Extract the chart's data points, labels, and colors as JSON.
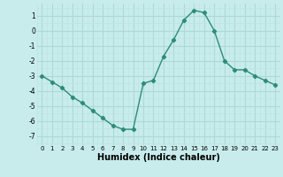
{
  "x": [
    0,
    1,
    2,
    3,
    4,
    5,
    6,
    7,
    8,
    9,
    10,
    11,
    12,
    13,
    14,
    15,
    16,
    17,
    18,
    19,
    20,
    21,
    22,
    23
  ],
  "y": [
    -3.0,
    -3.4,
    -3.8,
    -4.4,
    -4.8,
    -5.3,
    -5.8,
    -6.3,
    -6.55,
    -6.55,
    -3.5,
    -3.3,
    -1.7,
    -0.6,
    0.7,
    1.35,
    1.2,
    0.0,
    -2.0,
    -2.6,
    -2.6,
    -3.0,
    -3.3,
    -3.6
  ],
  "line_color": "#2e8b7a",
  "marker": "D",
  "markersize": 2.2,
  "linewidth": 1.0,
  "bg_color": "#c8ecec",
  "grid_major_color": "#aed8d8",
  "grid_minor_color": "#bce4e4",
  "xlabel": "Humidex (Indice chaleur)",
  "xlabel_fontsize": 7,
  "ytick_labels": [
    "1",
    "0",
    "-1",
    "-2",
    "-3",
    "-4",
    "-5",
    "-6",
    "-7"
  ],
  "yticks": [
    1,
    0,
    -1,
    -2,
    -3,
    -4,
    -5,
    -6,
    -7
  ],
  "xticks": [
    0,
    1,
    2,
    3,
    4,
    5,
    6,
    7,
    8,
    9,
    10,
    11,
    12,
    13,
    14,
    15,
    16,
    17,
    18,
    19,
    20,
    21,
    22,
    23
  ],
  "ylim": [
    -7.6,
    1.8
  ],
  "xlim": [
    -0.5,
    23.5
  ]
}
